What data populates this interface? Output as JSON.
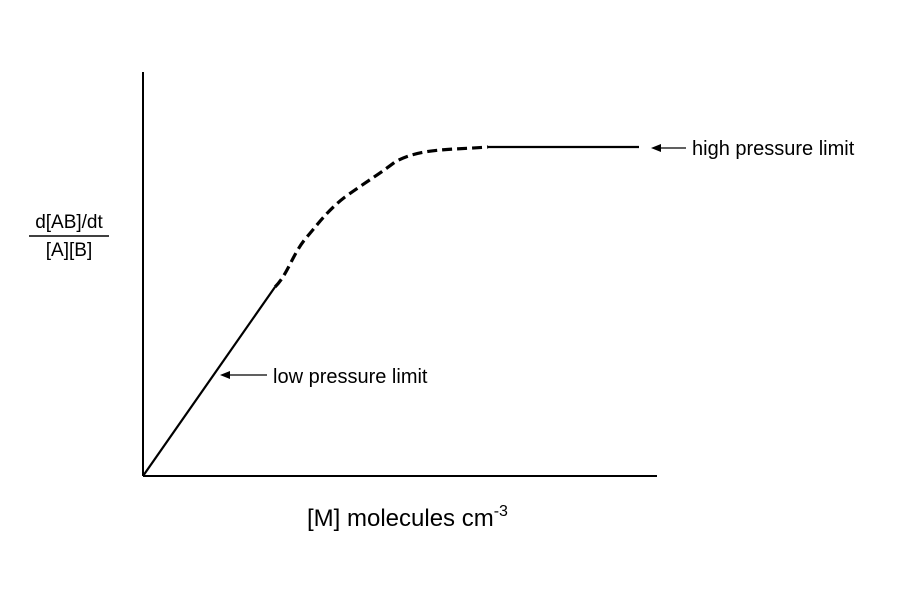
{
  "colors": {
    "ink": "#000000",
    "background": "#ffffff"
  },
  "y_label": {
    "numerator": "d[AB]/dt",
    "denominator": "[A][B]"
  },
  "x_label": {
    "text": "[M]  molecules cm",
    "exponent": "-3"
  },
  "annotations": {
    "low": "low pressure limit",
    "high": "high pressure limit"
  },
  "curve": {
    "segments": [
      "solid-linear-rise",
      "dashed-falloff-transition",
      "solid-plateau"
    ]
  }
}
